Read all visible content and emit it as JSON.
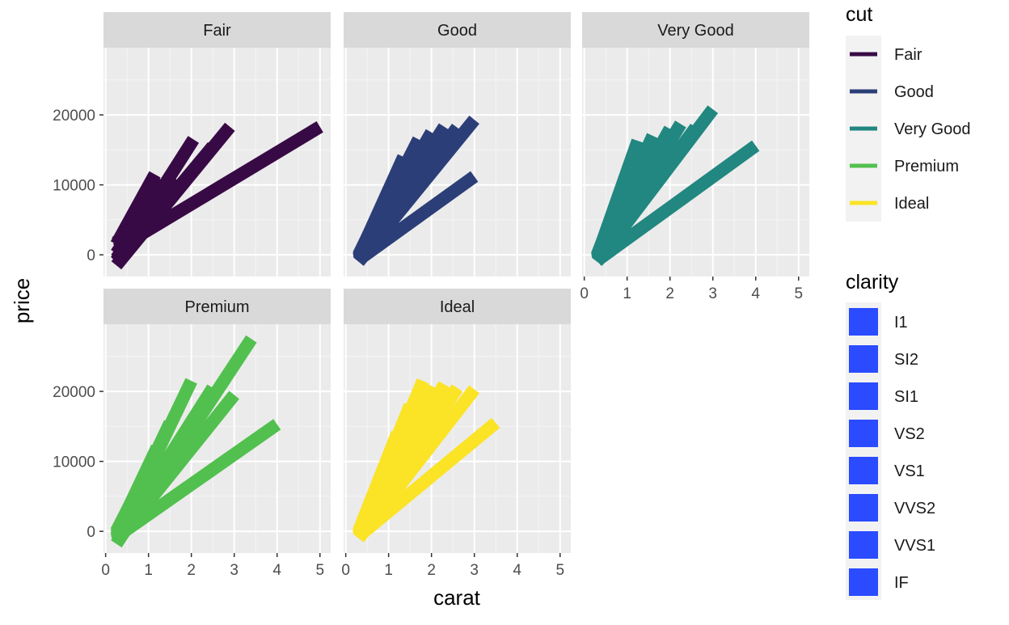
{
  "chart_data": {
    "type": "line",
    "facet_by": "cut",
    "panels": [
      {
        "strip": "Fair",
        "color": "#380A45",
        "series": [
          {
            "clarity": "I1",
            "x": [
              0.25,
              5.0
            ],
            "y": [
              800,
              18300
            ]
          },
          {
            "clarity": "SI2",
            "x": [
              0.25,
              2.9
            ],
            "y": [
              -1500,
              18300
            ]
          },
          {
            "clarity": "SI1",
            "x": [
              0.25,
              2.5
            ],
            "y": [
              -1000,
              15500
            ]
          },
          {
            "clarity": "VS2",
            "x": [
              0.25,
              2.05
            ],
            "y": [
              -800,
              16500
            ]
          },
          {
            "clarity": "VS1",
            "x": [
              0.25,
              1.6
            ],
            "y": [
              -500,
              11000
            ]
          },
          {
            "clarity": "VVS2",
            "x": [
              0.25,
              1.35
            ],
            "y": [
              200,
              10500
            ]
          },
          {
            "clarity": "VVS1",
            "x": [
              0.25,
              1.15
            ],
            "y": [
              1500,
              11500
            ]
          },
          {
            "clarity": "IF",
            "x": [
              0.25,
              0.7
            ],
            "y": [
              1800,
              4500
            ]
          }
        ]
      },
      {
        "strip": "Good",
        "color": "#2C3E78",
        "series": [
          {
            "clarity": "I1",
            "x": [
              0.3,
              3.0
            ],
            "y": [
              -700,
              11200
            ]
          },
          {
            "clarity": "SI2",
            "x": [
              0.3,
              3.0
            ],
            "y": [
              -1000,
              19300
            ]
          },
          {
            "clarity": "SI1",
            "x": [
              0.3,
              2.6
            ],
            "y": [
              -900,
              18200
            ]
          },
          {
            "clarity": "VS2",
            "x": [
              0.3,
              2.3
            ],
            "y": [
              -800,
              18300
            ]
          },
          {
            "clarity": "VS1",
            "x": [
              0.3,
              2.0
            ],
            "y": [
              -600,
              17500
            ]
          },
          {
            "clarity": "VVS2",
            "x": [
              0.3,
              1.7
            ],
            "y": [
              -400,
              16500
            ]
          },
          {
            "clarity": "VVS1",
            "x": [
              0.3,
              1.35
            ],
            "y": [
              -200,
              14000
            ]
          },
          {
            "clarity": "IF",
            "x": [
              0.3,
              1.1
            ],
            "y": [
              0,
              10000
            ]
          }
        ]
      },
      {
        "strip": "Very Good",
        "color": "#218780",
        "series": [
          {
            "clarity": "I1",
            "x": [
              0.3,
              4.0
            ],
            "y": [
              -800,
              15600
            ]
          },
          {
            "clarity": "SI2",
            "x": [
              0.3,
              3.0
            ],
            "y": [
              -1000,
              20800
            ]
          },
          {
            "clarity": "SI1",
            "x": [
              0.3,
              2.6
            ],
            "y": [
              -900,
              18200
            ]
          },
          {
            "clarity": "VS2",
            "x": [
              0.3,
              2.25
            ],
            "y": [
              -800,
              18700
            ]
          },
          {
            "clarity": "VS1",
            "x": [
              0.3,
              2.0
            ],
            "y": [
              -600,
              18000
            ]
          },
          {
            "clarity": "VVS2",
            "x": [
              0.3,
              1.6
            ],
            "y": [
              -400,
              17000
            ]
          },
          {
            "clarity": "VVS1",
            "x": [
              0.3,
              1.25
            ],
            "y": [
              -200,
              16300
            ]
          },
          {
            "clarity": "IF",
            "x": [
              0.3,
              1.0
            ],
            "y": [
              0,
              11000
            ]
          }
        ]
      },
      {
        "strip": "Premium",
        "color": "#52C04E",
        "series": [
          {
            "clarity": "I1",
            "x": [
              0.25,
              4.0
            ],
            "y": [
              -800,
              15300
            ]
          },
          {
            "clarity": "SI2",
            "x": [
              0.25,
              3.4
            ],
            "y": [
              -1800,
              27500
            ]
          },
          {
            "clarity": "SI1",
            "x": [
              0.25,
              3.0
            ],
            "y": [
              -1500,
              19500
            ]
          },
          {
            "clarity": "VS2",
            "x": [
              0.25,
              2.5
            ],
            "y": [
              -1200,
              20500
            ]
          },
          {
            "clarity": "VS1",
            "x": [
              0.25,
              2.0
            ],
            "y": [
              -900,
              21500
            ]
          },
          {
            "clarity": "VVS2",
            "x": [
              0.25,
              1.5
            ],
            "y": [
              -600,
              15500
            ]
          },
          {
            "clarity": "VVS1",
            "x": [
              0.25,
              1.2
            ],
            "y": [
              -300,
              12000
            ]
          },
          {
            "clarity": "IF",
            "x": [
              0.25,
              1.0
            ],
            "y": [
              0,
              9000
            ]
          }
        ]
      },
      {
        "strip": "Ideal",
        "color": "#FBE326",
        "series": [
          {
            "clarity": "I1",
            "x": [
              0.3,
              3.5
            ],
            "y": [
              -700,
              15500
            ]
          },
          {
            "clarity": "SI2",
            "x": [
              0.3,
              3.0
            ],
            "y": [
              -1000,
              20300
            ]
          },
          {
            "clarity": "SI1",
            "x": [
              0.3,
              2.6
            ],
            "y": [
              -900,
              20500
            ]
          },
          {
            "clarity": "VS2",
            "x": [
              0.3,
              2.3
            ],
            "y": [
              -800,
              21000
            ]
          },
          {
            "clarity": "VS1",
            "x": [
              0.3,
              2.0
            ],
            "y": [
              -600,
              20800
            ]
          },
          {
            "clarity": "VVS2",
            "x": [
              0.3,
              1.8
            ],
            "y": [
              -400,
              21500
            ]
          },
          {
            "clarity": "VVS1",
            "x": [
              0.3,
              1.5
            ],
            "y": [
              -200,
              18000
            ]
          },
          {
            "clarity": "IF",
            "x": [
              0.3,
              1.2
            ],
            "y": [
              0,
              14000
            ]
          }
        ]
      }
    ],
    "xlabel": "carat",
    "ylabel": "price",
    "xlim": [
      -0.05,
      5.25
    ],
    "ylim": [
      -3100,
      29600
    ],
    "x_ticks": [
      0,
      1,
      2,
      3,
      4,
      5
    ],
    "y_ticks": [
      0,
      10000,
      20000
    ],
    "grid": true,
    "legend_position": "right",
    "legends": [
      {
        "title": "cut",
        "kind": "line",
        "entries": [
          {
            "label": "Fair",
            "color": "#380A45"
          },
          {
            "label": "Good",
            "color": "#2C3E78"
          },
          {
            "label": "Very Good",
            "color": "#218780"
          },
          {
            "label": "Premium",
            "color": "#52C04E"
          },
          {
            "label": "Ideal",
            "color": "#FBE326"
          }
        ]
      },
      {
        "title": "clarity",
        "kind": "fill",
        "entries": [
          {
            "label": "I1",
            "color": "#2A4BFF"
          },
          {
            "label": "SI2",
            "color": "#2A4BFF"
          },
          {
            "label": "SI1",
            "color": "#2A4BFF"
          },
          {
            "label": "VS2",
            "color": "#2A4BFF"
          },
          {
            "label": "VS1",
            "color": "#2A4BFF"
          },
          {
            "label": "VVS2",
            "color": "#2A4BFF"
          },
          {
            "label": "VVS1",
            "color": "#2A4BFF"
          },
          {
            "label": "IF",
            "color": "#2A4BFF"
          }
        ]
      }
    ]
  }
}
